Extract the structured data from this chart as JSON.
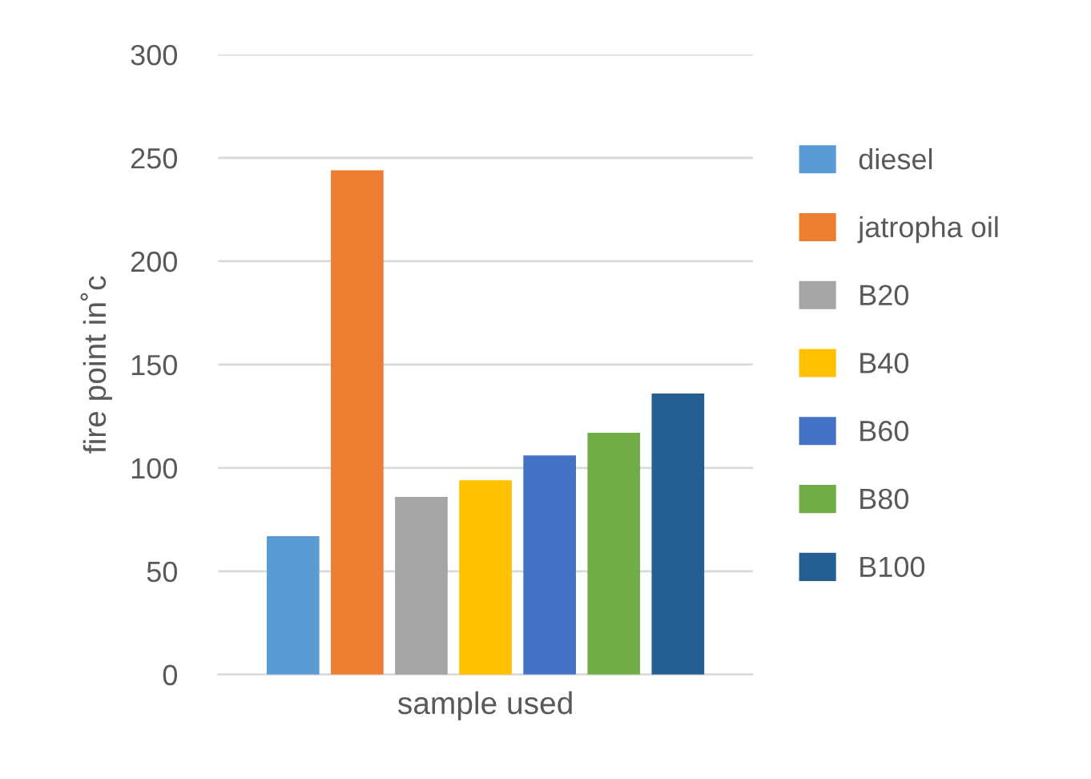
{
  "chart_data": {
    "type": "bar",
    "xlabel": "sample used",
    "ylabel": "fire point in˚c",
    "categories": [
      null
    ],
    "series": [
      {
        "name": "diesel",
        "color": "#5b9bd5",
        "values": [
          67
        ]
      },
      {
        "name": "jatropha oil",
        "color": "#ed7d31",
        "values": [
          244
        ]
      },
      {
        "name": "B20",
        "color": "#a5a5a5",
        "values": [
          86
        ]
      },
      {
        "name": "B40",
        "color": "#ffc000",
        "values": [
          94
        ]
      },
      {
        "name": "B60",
        "color": "#4472c4",
        "values": [
          106
        ]
      },
      {
        "name": "B80",
        "color": "#70ad47",
        "values": [
          117
        ]
      },
      {
        "name": "B100",
        "color": "#255e91",
        "values": [
          136
        ]
      }
    ],
    "ylim": [
      0,
      300
    ],
    "yticks": [
      0,
      50,
      100,
      150,
      200,
      250,
      300
    ],
    "grid": "y",
    "legend": "right"
  }
}
